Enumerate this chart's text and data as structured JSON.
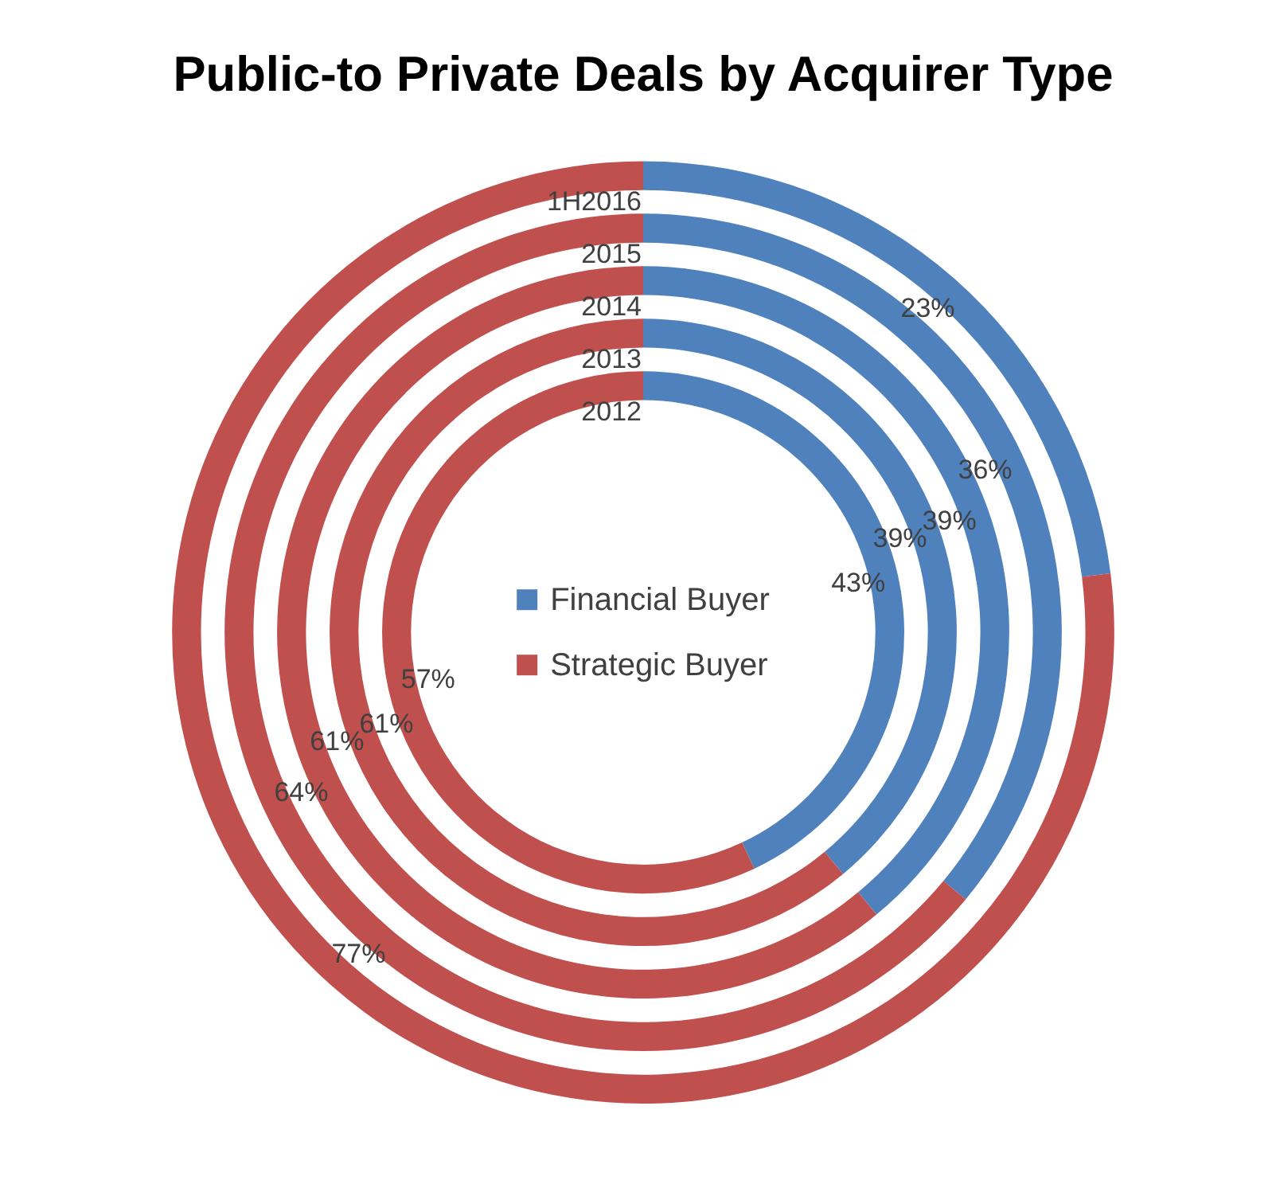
{
  "chart_data": {
    "type": "donut",
    "title": "Public-to Private Deals by Acquirer Type",
    "categories": [
      "Financial Buyer",
      "Strategic Buyer"
    ],
    "colors": [
      "#4f81bd",
      "#c0504d"
    ],
    "series": [
      {
        "name": "1H2016",
        "values": [
          23,
          77
        ],
        "value_labels": [
          "23%",
          "77%"
        ]
      },
      {
        "name": "2015",
        "values": [
          36,
          64
        ],
        "value_labels": [
          "36%",
          "64%"
        ]
      },
      {
        "name": "2014",
        "values": [
          39,
          61
        ],
        "value_labels": [
          "39%",
          "61%"
        ]
      },
      {
        "name": "2013",
        "values": [
          39,
          61
        ],
        "value_labels": [
          "39%",
          "61%"
        ]
      },
      {
        "name": "2012",
        "values": [
          43,
          57
        ],
        "value_labels": [
          "43%",
          "57%"
        ]
      }
    ],
    "legend": "center"
  }
}
